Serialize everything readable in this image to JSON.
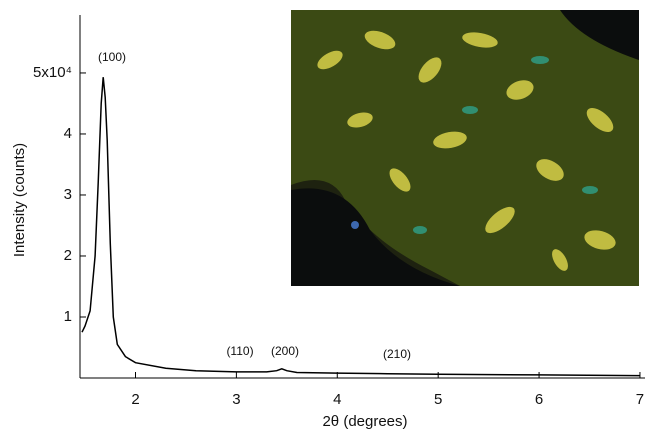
{
  "chart_data": {
    "type": "line",
    "x_label": "2θ (degrees)",
    "y_label": "Intensity (counts)",
    "x": [
      1.47,
      1.5,
      1.55,
      1.6,
      1.63,
      1.66,
      1.68,
      1.7,
      1.72,
      1.75,
      1.78,
      1.82,
      1.9,
      2.0,
      2.3,
      2.6,
      3.0,
      3.3,
      3.4,
      3.45,
      3.5,
      3.6,
      4.0,
      4.5,
      5.0,
      6.0,
      7.0
    ],
    "values": [
      0.75,
      0.85,
      1.1,
      2.0,
      3.2,
      4.5,
      4.93,
      4.6,
      3.9,
      2.2,
      1.0,
      0.55,
      0.35,
      0.25,
      0.16,
      0.12,
      0.1,
      0.1,
      0.12,
      0.15,
      0.12,
      0.09,
      0.08,
      0.07,
      0.06,
      0.05,
      0.04
    ],
    "color": "#000000",
    "xlim": [
      1.45,
      7.05
    ],
    "ylim": [
      0,
      5.95
    ],
    "xticks": [
      2,
      3,
      4,
      5,
      6,
      7
    ],
    "yticks": [
      1,
      2,
      3,
      4,
      {
        "value": 5,
        "label": "5x10⁴"
      }
    ],
    "annotations": [
      "(100)",
      "(110)",
      "(200)",
      "(210)"
    ]
  }
}
